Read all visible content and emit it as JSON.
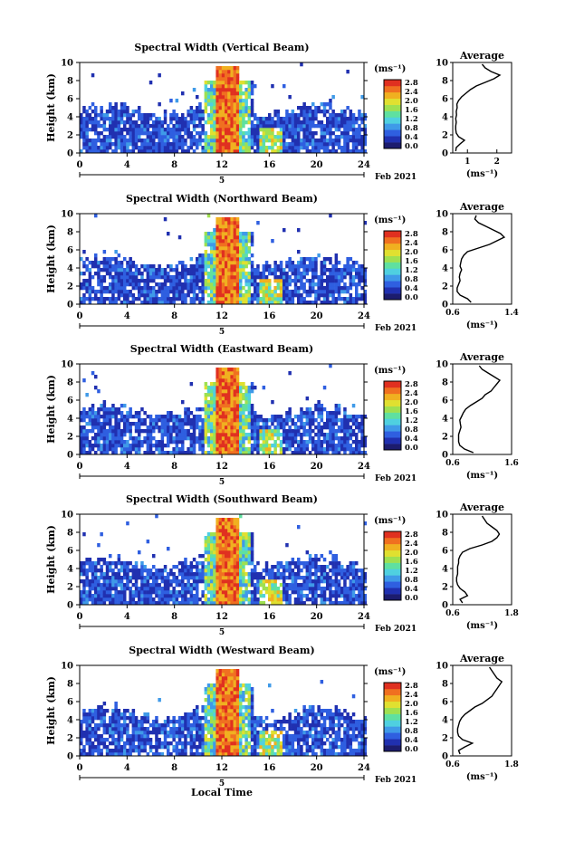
{
  "figure": {
    "xlabel": "Local Time",
    "date_label": "Feb 2021",
    "day_label": "5",
    "colorbar_unit": "(ms⁻¹)",
    "colorbar_ticks": [
      "0.0",
      "0.4",
      "0.8",
      "1.2",
      "1.6",
      "2.0",
      "2.4",
      "2.8"
    ],
    "colorbar_colors": [
      "#1c1c6e",
      "#2030b0",
      "#2f5fe0",
      "#3f9ae8",
      "#4fd0e0",
      "#5fe0a0",
      "#9fe050",
      "#e0e030",
      "#f0b020",
      "#f07020",
      "#e03020"
    ]
  },
  "chart_data": [
    {
      "type": "heatmap",
      "title": "Spectral Width (Vertical Beam)",
      "ylabel": "Height (km)",
      "xlim": [
        0,
        24
      ],
      "ylim": [
        0,
        10
      ],
      "xticks": [
        0,
        4,
        8,
        12,
        16,
        20,
        24
      ],
      "yticks": [
        0,
        2,
        4,
        6,
        8,
        10
      ],
      "profile": {
        "title": "Average",
        "xlabel": "(ms⁻¹)",
        "xlim": [
          0.5,
          2.5
        ],
        "xticks": [
          1,
          2
        ],
        "xticklabels": [
          "1",
          "2"
        ],
        "heights": [
          0.2,
          0.6,
          1.0,
          1.4,
          1.8,
          2.2,
          2.6,
          3.0,
          3.4,
          3.8,
          4.2,
          4.6,
          5.0,
          5.4,
          5.8,
          6.2,
          6.6,
          7.0,
          7.4,
          7.8,
          8.2,
          8.6,
          9.0,
          9.4,
          9.8
        ],
        "values": [
          0.6,
          0.62,
          0.75,
          0.9,
          0.7,
          0.62,
          0.6,
          0.6,
          0.62,
          0.6,
          0.63,
          0.62,
          0.65,
          0.64,
          0.7,
          0.8,
          0.95,
          1.1,
          1.3,
          1.6,
          1.9,
          2.1,
          1.8,
          1.6,
          1.5
        ]
      }
    },
    {
      "type": "heatmap",
      "title": "Spectral Width (Northward Beam)",
      "ylabel": "Height (km)",
      "xlim": [
        0,
        24
      ],
      "ylim": [
        0,
        10
      ],
      "xticks": [
        0,
        4,
        8,
        12,
        16,
        20,
        24
      ],
      "yticks": [
        0,
        2,
        4,
        6,
        8,
        10
      ],
      "profile": {
        "title": "Average",
        "xlabel": "(ms⁻¹)",
        "xlim": [
          0.6,
          1.4
        ],
        "xticks": [
          0.6,
          1.4
        ],
        "xticklabels": [
          "0.6",
          "1.4"
        ],
        "heights": [
          0.2,
          0.6,
          1.0,
          1.4,
          1.8,
          2.2,
          2.6,
          3.0,
          3.4,
          3.8,
          4.2,
          4.6,
          5.0,
          5.4,
          5.8,
          6.2,
          6.6,
          7.0,
          7.4,
          7.8,
          8.2,
          8.6,
          9.0,
          9.4,
          9.8
        ],
        "values": [
          0.85,
          0.8,
          0.7,
          0.66,
          0.66,
          0.68,
          0.7,
          0.69,
          0.7,
          0.72,
          0.7,
          0.71,
          0.72,
          0.75,
          0.8,
          0.95,
          1.1,
          1.2,
          1.3,
          1.25,
          1.15,
          1.05,
          0.95,
          0.9,
          0.92
        ]
      }
    },
    {
      "type": "heatmap",
      "title": "Spectral Width (Eastward Beam)",
      "ylabel": "Height (km)",
      "xlim": [
        0,
        24
      ],
      "ylim": [
        0,
        10
      ],
      "xticks": [
        0,
        4,
        8,
        12,
        16,
        20,
        24
      ],
      "yticks": [
        0,
        2,
        4,
        6,
        8,
        10
      ],
      "profile": {
        "title": "Average",
        "xlabel": "(ms⁻¹)",
        "xlim": [
          0.6,
          1.6
        ],
        "xticks": [
          0.6,
          1.6
        ],
        "xticklabels": [
          "0.6",
          "1.6"
        ],
        "heights": [
          0.2,
          0.6,
          1.0,
          1.4,
          1.8,
          2.2,
          2.6,
          3.0,
          3.4,
          3.8,
          4.2,
          4.6,
          5.0,
          5.4,
          5.8,
          6.2,
          6.6,
          7.0,
          7.4,
          7.8,
          8.2,
          8.6,
          9.0,
          9.4,
          9.8
        ],
        "values": [
          0.95,
          0.8,
          0.72,
          0.7,
          0.7,
          0.7,
          0.72,
          0.74,
          0.73,
          0.72,
          0.75,
          0.78,
          0.82,
          0.9,
          1.0,
          1.1,
          1.15,
          1.25,
          1.3,
          1.35,
          1.4,
          1.3,
          1.2,
          1.1,
          1.05
        ]
      }
    },
    {
      "type": "heatmap",
      "title": "Spectral Width (Southward Beam)",
      "ylabel": "Height (km)",
      "xlim": [
        0,
        24
      ],
      "ylim": [
        0,
        10
      ],
      "xticks": [
        0,
        4,
        8,
        12,
        16,
        20,
        24
      ],
      "yticks": [
        0,
        2,
        4,
        6,
        8,
        10
      ],
      "profile": {
        "title": "Average",
        "xlabel": "(ms⁻¹)",
        "xlim": [
          0.6,
          1.8
        ],
        "xticks": [
          0.6,
          1.8
        ],
        "xticklabels": [
          "0.6",
          "1.8"
        ],
        "heights": [
          0.2,
          0.6,
          1.0,
          1.4,
          1.8,
          2.2,
          2.6,
          3.0,
          3.4,
          3.8,
          4.2,
          4.6,
          5.0,
          5.4,
          5.8,
          6.2,
          6.6,
          7.0,
          7.4,
          7.8,
          8.2,
          8.6,
          9.0,
          9.4,
          9.8
        ],
        "values": [
          0.8,
          0.75,
          0.9,
          0.85,
          0.75,
          0.7,
          0.68,
          0.68,
          0.7,
          0.7,
          0.7,
          0.72,
          0.72,
          0.75,
          0.8,
          0.95,
          1.2,
          1.4,
          1.5,
          1.55,
          1.5,
          1.4,
          1.3,
          1.25,
          1.2
        ]
      }
    },
    {
      "type": "heatmap",
      "title": "Spectral Width (Westward Beam)",
      "ylabel": "Height (km)",
      "xlim": [
        0,
        24
      ],
      "ylim": [
        0,
        10
      ],
      "xticks": [
        0,
        4,
        8,
        12,
        16,
        20,
        24
      ],
      "yticks": [
        0,
        2,
        4,
        6,
        8,
        10
      ],
      "profile": {
        "title": "Average",
        "xlabel": "(ms⁻¹)",
        "xlim": [
          0.6,
          1.8
        ],
        "xticks": [
          0.6,
          1.8
        ],
        "xticklabels": [
          "0.6",
          "1.8"
        ],
        "heights": [
          0.2,
          0.6,
          1.0,
          1.4,
          1.8,
          2.2,
          2.6,
          3.0,
          3.4,
          3.8,
          4.2,
          4.6,
          5.0,
          5.4,
          5.8,
          6.2,
          6.6,
          7.0,
          7.4,
          7.8,
          8.2,
          8.6,
          9.0,
          9.4,
          9.8
        ],
        "values": [
          0.75,
          0.72,
          0.85,
          1.0,
          0.8,
          0.72,
          0.7,
          0.7,
          0.72,
          0.74,
          0.78,
          0.85,
          0.95,
          1.05,
          1.2,
          1.3,
          1.4,
          1.45,
          1.5,
          1.55,
          1.6,
          1.5,
          1.45,
          1.4,
          1.35
        ]
      }
    }
  ]
}
